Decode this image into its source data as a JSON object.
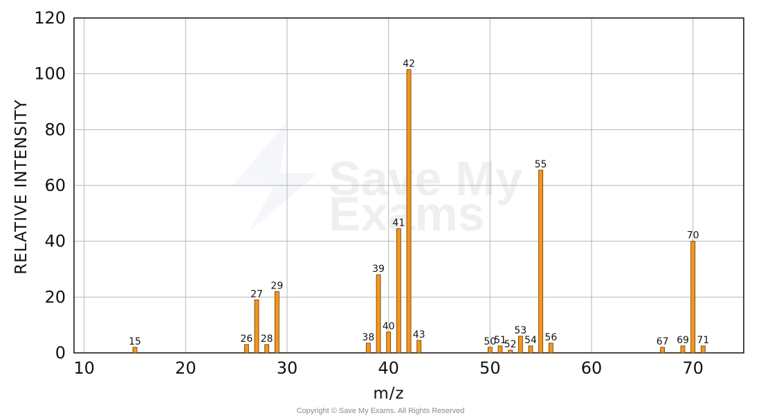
{
  "chart_data": {
    "type": "bar",
    "title": "",
    "xlabel": "m/z",
    "ylabel": "RELATIVE INTENSITY",
    "xlim": [
      9,
      75
    ],
    "ylim": [
      0,
      120
    ],
    "x_ticks": [
      10,
      20,
      30,
      40,
      50,
      60,
      70
    ],
    "y_ticks": [
      0,
      20,
      40,
      60,
      80,
      100,
      120
    ],
    "grid": true,
    "bar_color": "#f7941d",
    "bar_edge_color": "#5a3a00",
    "categories": [
      "15",
      "26",
      "27",
      "28",
      "29",
      "38",
      "39",
      "40",
      "41",
      "42",
      "43",
      "50",
      "51",
      "52",
      "53",
      "54",
      "55",
      "56",
      "67",
      "69",
      "70",
      "71"
    ],
    "x": [
      15,
      26,
      27,
      28,
      29,
      38,
      39,
      40,
      41,
      42,
      43,
      50,
      51,
      52,
      53,
      54,
      55,
      56,
      67,
      69,
      70,
      71
    ],
    "values": [
      2,
      3,
      19,
      3,
      22,
      3.5,
      28,
      7.5,
      44.5,
      101.5,
      4.5,
      2,
      2.5,
      1,
      6,
      2.5,
      65.5,
      3.5,
      2,
      2.5,
      40,
      2.5
    ]
  },
  "watermark": {
    "text_line1": "Save My",
    "text_line2": "Exams"
  },
  "copyright": "Copyright © Save My Exams. All Rights Reserved"
}
